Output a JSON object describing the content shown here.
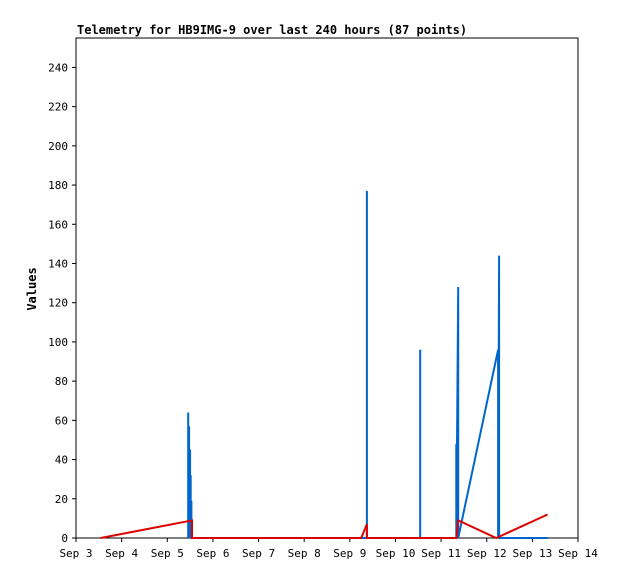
{
  "chart_data": {
    "type": "line",
    "title": "Telemetry for HB9IMG-9 over last 240 hours (87 points)",
    "xlabel": "",
    "ylabel": "Values",
    "xlim": [
      "2023-09-03T00:00",
      "2023-09-14T00:00"
    ],
    "ylim": [
      0,
      255
    ],
    "x_ticks": [
      "Sep 3",
      "Sep 4",
      "Sep 5",
      "Sep 6",
      "Sep 7",
      "Sep 8",
      "Sep 9",
      "Sep 10",
      "Sep 11",
      "Sep 12",
      "Sep 13",
      "Sep 14"
    ],
    "y_ticks": [
      0,
      20,
      40,
      60,
      80,
      100,
      120,
      140,
      160,
      180,
      200,
      220,
      240
    ],
    "grid": false,
    "legend": "none",
    "series": [
      {
        "color": "#0066cc",
        "points": [
          {
            "x": "2023-09-05T11:00",
            "y": 0
          },
          {
            "x": "2023-09-05T11:00",
            "y": 64
          },
          {
            "x": "2023-09-05T11:00",
            "y": 0
          },
          {
            "x": "2023-09-05T11:30",
            "y": 57
          },
          {
            "x": "2023-09-05T11:30",
            "y": 0
          },
          {
            "x": "2023-09-05T12:00",
            "y": 45
          },
          {
            "x": "2023-09-05T12:00",
            "y": 0
          },
          {
            "x": "2023-09-05T12:20",
            "y": 32
          },
          {
            "x": "2023-09-05T12:20",
            "y": 0
          },
          {
            "x": "2023-09-05T12:40",
            "y": 19
          },
          {
            "x": "2023-09-05T12:40",
            "y": 0
          },
          {
            "x": "2023-09-05T13:00",
            "y": 9
          },
          {
            "x": "2023-09-05T13:00",
            "y": 0
          },
          {
            "x": "2023-09-09T09:00",
            "y": 0
          },
          {
            "x": "2023-09-09T09:00",
            "y": 177
          },
          {
            "x": "2023-09-09T09:00",
            "y": 0
          },
          {
            "x": "2023-09-10T13:00",
            "y": 0
          },
          {
            "x": "2023-09-10T13:00",
            "y": 96
          },
          {
            "x": "2023-09-10T13:00",
            "y": 0
          },
          {
            "x": "2023-09-11T08:00",
            "y": 0
          },
          {
            "x": "2023-09-11T08:00",
            "y": 48
          },
          {
            "x": "2023-09-11T08:00",
            "y": 0
          },
          {
            "x": "2023-09-11T09:00",
            "y": 128
          },
          {
            "x": "2023-09-11T09:00",
            "y": 0
          },
          {
            "x": "2023-09-12T06:00",
            "y": 96
          },
          {
            "x": "2023-09-12T06:00",
            "y": 0
          },
          {
            "x": "2023-09-12T06:30",
            "y": 144
          },
          {
            "x": "2023-09-12T06:30",
            "y": 0
          },
          {
            "x": "2023-09-13T08:00",
            "y": 0
          }
        ]
      },
      {
        "color": "#dd0000",
        "points": [
          {
            "x": "2023-09-03T13:00",
            "y": 0
          },
          {
            "x": "2023-09-05T13:00",
            "y": 9
          },
          {
            "x": "2023-09-05T13:00",
            "y": 0
          },
          {
            "x": "2023-09-09T06:00",
            "y": 0
          },
          {
            "x": "2023-09-09T09:00",
            "y": 7
          },
          {
            "x": "2023-09-09T09:00",
            "y": 0
          },
          {
            "x": "2023-09-11T08:00",
            "y": 0
          },
          {
            "x": "2023-09-11T09:00",
            "y": 9
          },
          {
            "x": "2023-09-12T05:00",
            "y": 0
          },
          {
            "x": "2023-09-13T08:00",
            "y": 12
          }
        ]
      }
    ]
  }
}
